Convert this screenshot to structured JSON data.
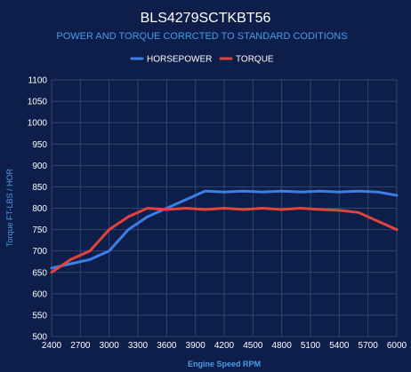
{
  "chart_data": {
    "type": "line",
    "title": "BLS4279SCTKBT56",
    "subtitle": "POWER AND TORQUE CORRCTED TO STANDARD CODITIONS",
    "xlabel": "Engine Speed RPM",
    "ylabel": "Torque FT-LBS / HOR",
    "xlim": [
      2400,
      6000
    ],
    "ylim": [
      500,
      1100
    ],
    "x_ticks": [
      "2400",
      "2700",
      "3000",
      "3300",
      "3600",
      "3900",
      "4200",
      "4500",
      "4800",
      "5100",
      "5400",
      "5700",
      "6000"
    ],
    "y_ticks": [
      "500",
      "550",
      "600",
      "650",
      "700",
      "750",
      "800",
      "850",
      "900",
      "950",
      "1000",
      "1050",
      "1100"
    ],
    "grid": true,
    "legend_position": "top-center",
    "x": [
      2400,
      2600,
      2800,
      3000,
      3200,
      3400,
      3600,
      3800,
      4000,
      4200,
      4400,
      4600,
      4800,
      5000,
      5200,
      5400,
      5600,
      5800,
      6000
    ],
    "series": [
      {
        "name": "HORSEPOWER",
        "color": "#3d7fe6",
        "values": [
          660,
          670,
          680,
          700,
          750,
          780,
          800,
          820,
          840,
          838,
          840,
          838,
          840,
          838,
          840,
          838,
          840,
          838,
          830
        ]
      },
      {
        "name": "TORQUE",
        "color": "#e0443a",
        "values": [
          650,
          680,
          700,
          750,
          780,
          800,
          797,
          800,
          797,
          800,
          797,
          800,
          797,
          800,
          797,
          795,
          790,
          770,
          750
        ]
      }
    ]
  },
  "colors": {
    "background": "#0e1e4a",
    "grid": "#33466f",
    "text": "#ffffff",
    "accent_text": "#4a9be8"
  }
}
